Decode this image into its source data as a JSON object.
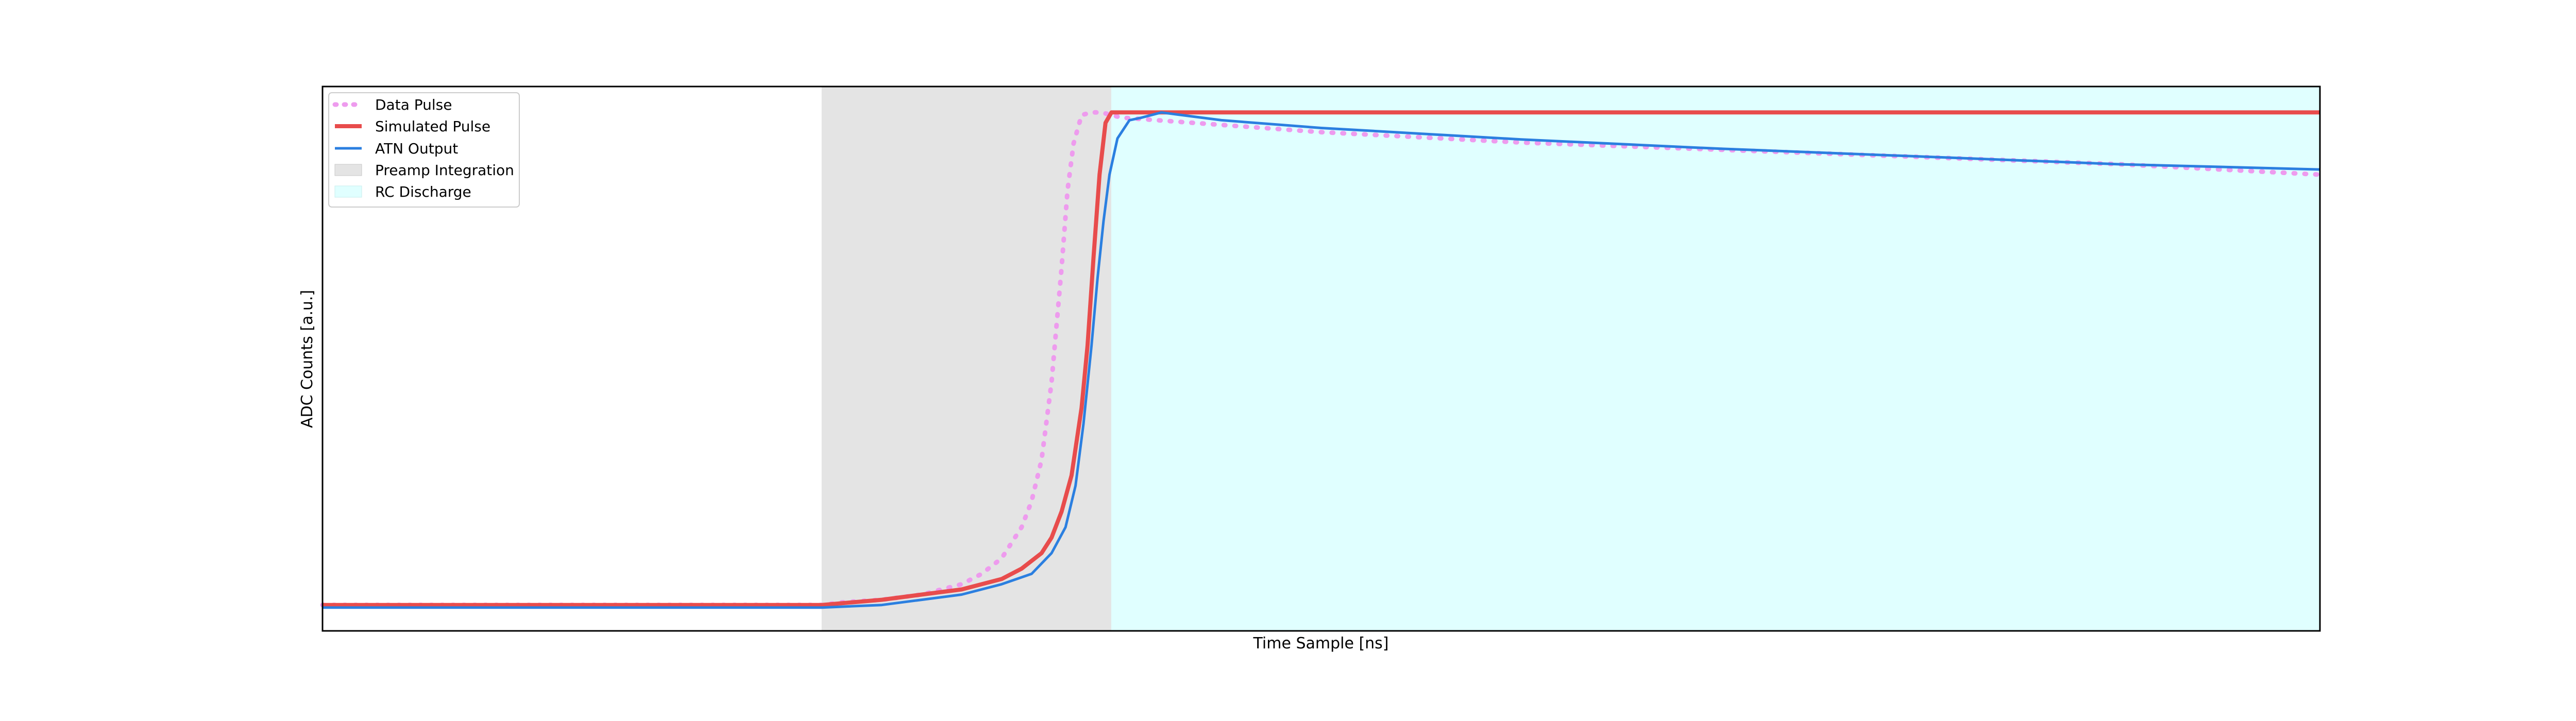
{
  "chart_data": {
    "type": "line",
    "title": "",
    "xlabel": "Time Sample [ns]",
    "ylabel": "ADC Counts [a.u.]",
    "xlim": [
      0,
      1000
    ],
    "ylim": [
      0,
      1.05
    ],
    "grid": false,
    "ticks_shown": false,
    "legend_position": "upper-left",
    "shaded_regions": [
      {
        "name": "Preamp Integration",
        "x_start": 250,
        "x_end": 395,
        "color": "#e4e4e4"
      },
      {
        "name": "RC Discharge",
        "x_start": 395,
        "x_end": 1000,
        "color": "#e0ffff"
      }
    ],
    "series": [
      {
        "name": "Data Pulse",
        "style": "dotted",
        "color": "#ee9bee",
        "x": [
          0,
          100,
          200,
          250,
          260,
          280,
          300,
          320,
          330,
          340,
          350,
          355,
          360,
          365,
          370,
          373,
          376,
          380,
          385,
          390,
          400,
          450,
          500,
          600,
          700,
          800,
          900,
          1000
        ],
        "y": [
          0.05,
          0.05,
          0.05,
          0.05,
          0.055,
          0.06,
          0.07,
          0.09,
          0.11,
          0.14,
          0.2,
          0.25,
          0.33,
          0.48,
          0.7,
          0.85,
          0.94,
          0.995,
          1.0,
          1.0,
          0.99,
          0.976,
          0.962,
          0.942,
          0.928,
          0.914,
          0.9,
          0.88
        ]
      },
      {
        "name": "Simulated Pulse",
        "style": "solid",
        "color": "#e84c4c",
        "x": [
          0,
          100,
          200,
          250,
          280,
          300,
          320,
          340,
          350,
          360,
          365,
          370,
          375,
          380,
          383,
          386,
          389,
          392,
          395,
          1000
        ],
        "y": [
          0.05,
          0.05,
          0.05,
          0.05,
          0.06,
          0.07,
          0.08,
          0.1,
          0.12,
          0.15,
          0.18,
          0.23,
          0.3,
          0.43,
          0.55,
          0.72,
          0.88,
          0.98,
          1.0,
          1.0
        ]
      },
      {
        "name": "ATN Output",
        "style": "solid",
        "color": "#2b7fe0",
        "x": [
          0,
          100,
          200,
          250,
          280,
          300,
          320,
          340,
          355,
          365,
          372,
          377,
          381,
          385,
          388,
          391,
          394,
          398,
          404,
          410,
          420,
          430,
          450,
          500,
          600,
          700,
          800,
          900,
          1000
        ],
        "y": [
          0.045,
          0.045,
          0.045,
          0.045,
          0.05,
          0.06,
          0.07,
          0.09,
          0.11,
          0.15,
          0.2,
          0.28,
          0.4,
          0.55,
          0.68,
          0.79,
          0.88,
          0.95,
          0.985,
          0.99,
          1.0,
          0.995,
          0.985,
          0.97,
          0.948,
          0.93,
          0.915,
          0.9,
          0.89
        ]
      }
    ]
  }
}
